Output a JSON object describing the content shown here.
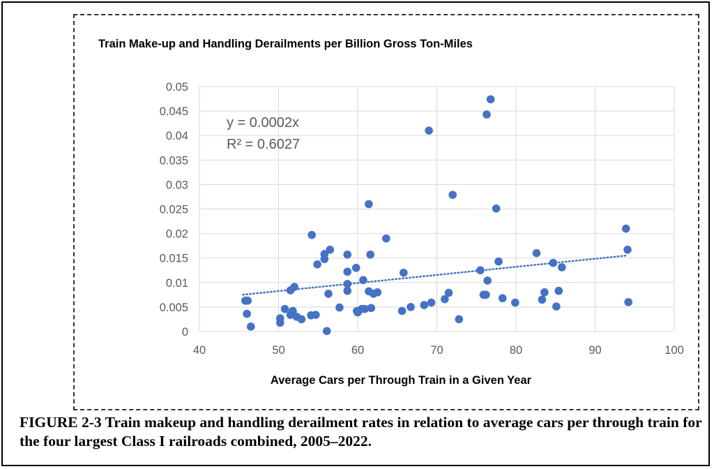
{
  "caption": "FIGURE 2-3 Train makeup and handling derailment rates in relation to average cars per through train for the four largest Class I railroads combined, 2005–2022.",
  "chart_data": {
    "type": "scatter",
    "title": "Train Make-up and Handling Derailments per Billion Gross Ton-Miles",
    "xlabel": "Average Cars per Through Train in a Given Year",
    "ylabel": "",
    "xlim": [
      40,
      100
    ],
    "ylim": [
      0,
      0.05
    ],
    "x_ticks": [
      "40",
      "50",
      "60",
      "70",
      "80",
      "90",
      "100"
    ],
    "y_ticks": [
      "0",
      "0.005",
      "0.01",
      "0.015",
      "0.02",
      "0.025",
      "0.03",
      "0.035",
      "0.04",
      "0.045",
      "0.05"
    ],
    "grid": true,
    "marker_color": "#4472C4",
    "trendline": {
      "style": "dotted",
      "color": "#4472C4",
      "x_range": [
        45.5,
        94
      ],
      "slope": 0.000165,
      "equation_label": "y = 0.0002x",
      "r2_label": "R² = 0.6027"
    },
    "series": [
      {
        "points": [
          [
            45.8,
            0.0063
          ],
          [
            46.1,
            0.0063
          ],
          [
            46.0,
            0.0036
          ],
          [
            46.5,
            0.001
          ],
          [
            50.2,
            0.0027
          ],
          [
            50.2,
            0.0018
          ],
          [
            50.8,
            0.0046
          ],
          [
            51.5,
            0.0034
          ],
          [
            51.5,
            0.0084
          ],
          [
            51.8,
            0.0042
          ],
          [
            52.0,
            0.0091
          ],
          [
            52.3,
            0.003
          ],
          [
            52.9,
            0.0025
          ],
          [
            54.1,
            0.0033
          ],
          [
            54.2,
            0.0197
          ],
          [
            54.7,
            0.0034
          ],
          [
            54.9,
            0.0137
          ],
          [
            55.8,
            0.0158
          ],
          [
            55.8,
            0.0148
          ],
          [
            56.3,
            0.0077
          ],
          [
            56.1,
            0.0001
          ],
          [
            56.5,
            0.0167
          ],
          [
            57.7,
            0.0049
          ],
          [
            58.7,
            0.0157
          ],
          [
            58.7,
            0.0122
          ],
          [
            58.7,
            0.0097
          ],
          [
            58.7,
            0.0083
          ],
          [
            59.8,
            0.013
          ],
          [
            59.9,
            0.0042
          ],
          [
            60.0,
            0.0039
          ],
          [
            60.5,
            0.0046
          ],
          [
            60.9,
            0.0046
          ],
          [
            60.7,
            0.0105
          ],
          [
            61.4,
            0.026
          ],
          [
            61.4,
            0.0082
          ],
          [
            61.6,
            0.0157
          ],
          [
            61.7,
            0.0048
          ],
          [
            62.0,
            0.0077
          ],
          [
            62.5,
            0.008
          ],
          [
            63.6,
            0.019
          ],
          [
            65.6,
            0.0042
          ],
          [
            65.8,
            0.012
          ],
          [
            66.7,
            0.005
          ],
          [
            68.4,
            0.0054
          ],
          [
            69.0,
            0.041
          ],
          [
            69.3,
            0.0059
          ],
          [
            71.0,
            0.0066
          ],
          [
            71.5,
            0.0079
          ],
          [
            72.0,
            0.0279
          ],
          [
            72.8,
            0.0025
          ],
          [
            75.5,
            0.0125
          ],
          [
            75.9,
            0.0075
          ],
          [
            76.2,
            0.0075
          ],
          [
            76.3,
            0.0443
          ],
          [
            76.4,
            0.0104
          ],
          [
            76.8,
            0.0474
          ],
          [
            77.5,
            0.0251
          ],
          [
            77.8,
            0.0143
          ],
          [
            78.3,
            0.0068
          ],
          [
            79.9,
            0.0059
          ],
          [
            82.6,
            0.016
          ],
          [
            83.3,
            0.0065
          ],
          [
            83.6,
            0.008
          ],
          [
            84.7,
            0.014
          ],
          [
            85.1,
            0.0051
          ],
          [
            85.4,
            0.0083
          ],
          [
            85.8,
            0.0131
          ],
          [
            93.9,
            0.021
          ],
          [
            94.1,
            0.0167
          ],
          [
            94.2,
            0.006
          ]
        ]
      }
    ]
  }
}
